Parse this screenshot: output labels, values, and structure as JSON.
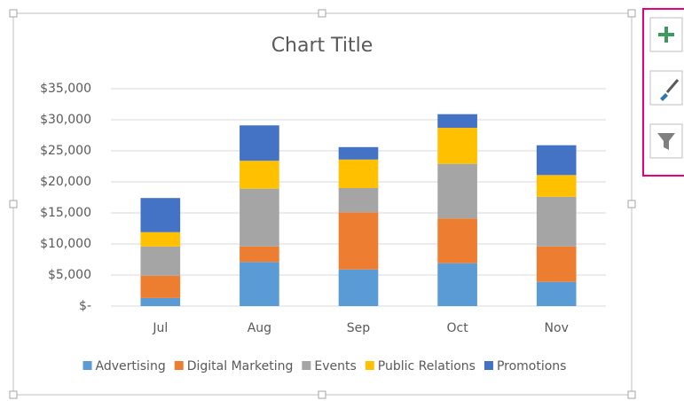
{
  "chart_data": {
    "type": "stacked_bar",
    "title": "Chart Title",
    "categories": [
      "Jul",
      "Aug",
      "Sep",
      "Oct",
      "Nov"
    ],
    "series": [
      {
        "name": "Advertising",
        "color": "#5b9bd5",
        "values": [
          1300,
          7100,
          5900,
          6900,
          3900
        ]
      },
      {
        "name": "Digital Marketing",
        "color": "#ed7d31",
        "values": [
          3600,
          2500,
          9200,
          7200,
          5700
        ]
      },
      {
        "name": "Events",
        "color": "#a5a5a5",
        "values": [
          4700,
          9300,
          3900,
          8800,
          8000
        ]
      },
      {
        "name": "Public Relations",
        "color": "#ffc000",
        "values": [
          2300,
          4500,
          4600,
          5800,
          3500
        ]
      },
      {
        "name": "Promotions",
        "color": "#4472c4",
        "values": [
          5500,
          5700,
          2000,
          2200,
          4800
        ]
      }
    ],
    "ylim": [
      0,
      35000
    ],
    "yticks": [
      {
        "value": 0,
        "label": "$-"
      },
      {
        "value": 5000,
        "label": "$5,000"
      },
      {
        "value": 10000,
        "label": "$10,000"
      },
      {
        "value": 15000,
        "label": "$15,000"
      },
      {
        "value": 20000,
        "label": "$20,000"
      },
      {
        "value": 25000,
        "label": "$25,000"
      },
      {
        "value": 30000,
        "label": "$30,000"
      },
      {
        "value": 35000,
        "label": "$35,000"
      }
    ],
    "grid": true,
    "legend": "bottom"
  }
}
